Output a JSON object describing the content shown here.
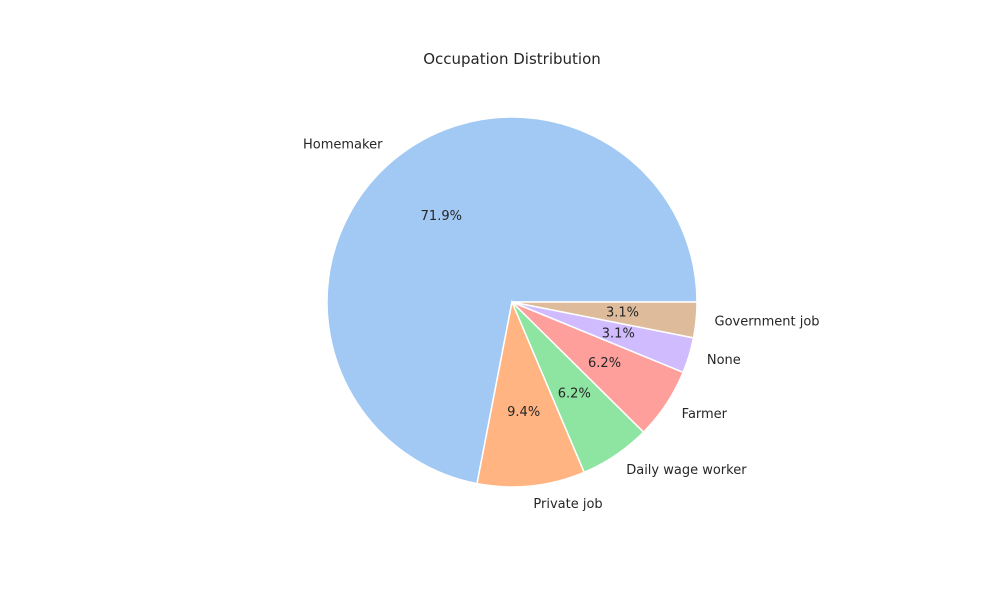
{
  "chart_data": {
    "type": "pie",
    "title": "Occupation Distribution",
    "categories": [
      "Homemaker",
      "Private job",
      "Daily wage worker",
      "Farmer",
      "None",
      "Government job"
    ],
    "values": [
      71.9,
      9.4,
      6.2,
      6.2,
      3.1,
      3.1
    ],
    "value_labels": [
      "71.9%",
      "9.4%",
      "6.2%",
      "6.2%",
      "3.1%",
      "3.1%"
    ],
    "colors": [
      "#a1c9f4",
      "#ffb482",
      "#8de5a1",
      "#ff9f9b",
      "#d0bbff",
      "#debb9b"
    ],
    "start_angle_deg": 0,
    "direction": "counterclockwise",
    "slice_edge_color": "#ffffff",
    "legend": "none"
  }
}
